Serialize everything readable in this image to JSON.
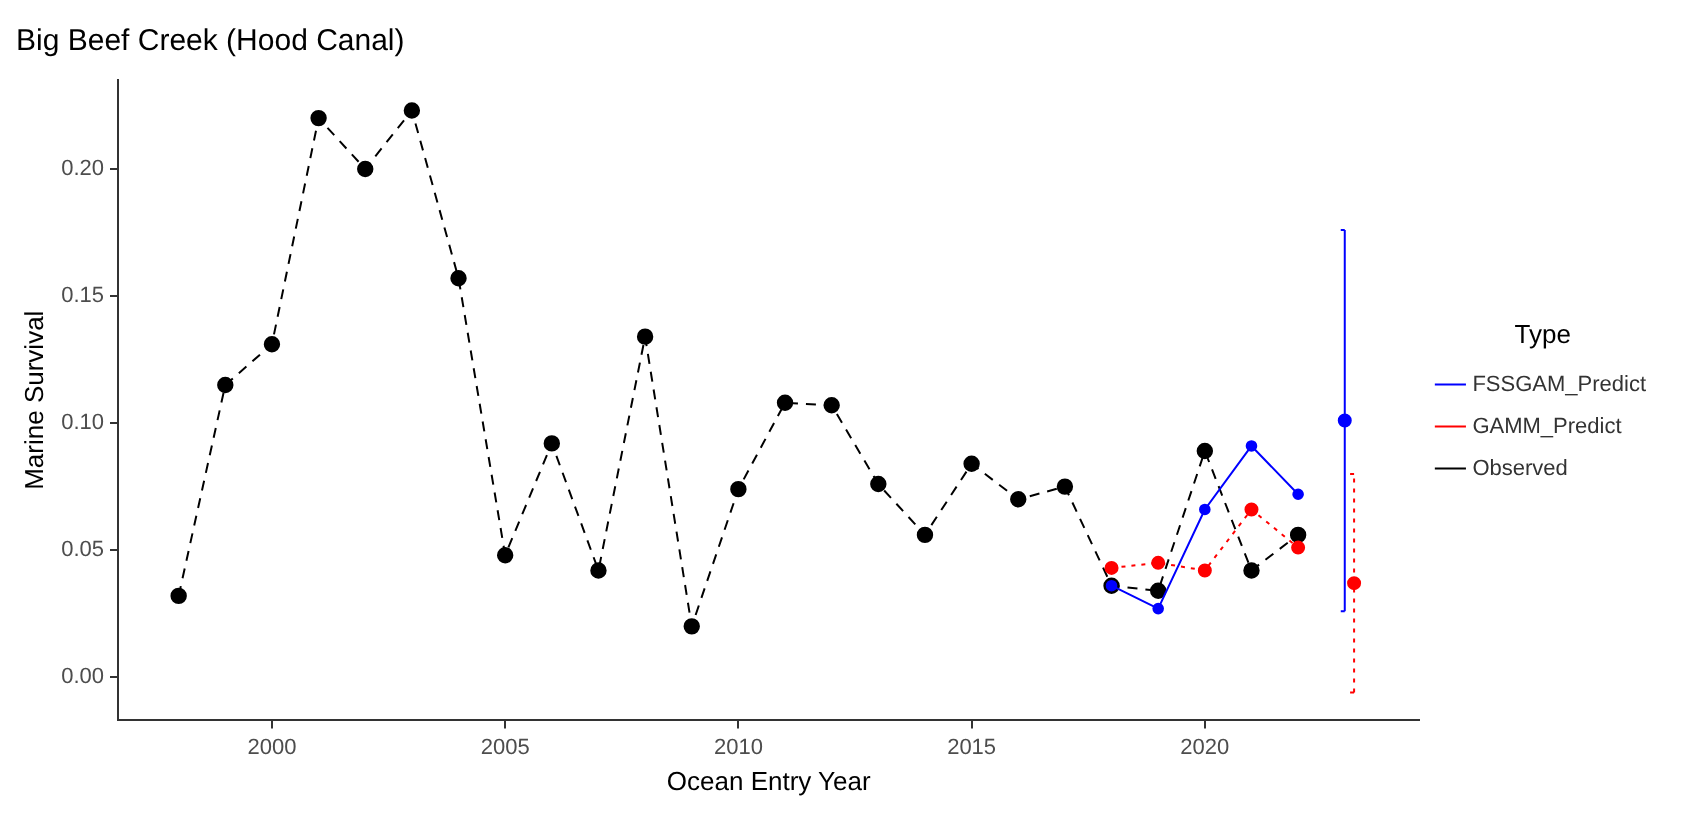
{
  "chart_data": {
    "type": "line",
    "title": "Big Beef Creek (Hood Canal)",
    "xlabel": "Ocean Entry Year",
    "ylabel": "Marine Survival",
    "legend_title": "Type",
    "xlim": [
      1996.7,
      2024.6
    ],
    "xticks": [
      2000,
      2005,
      2010,
      2015,
      2020
    ],
    "ylim": [
      -0.017,
      0.235
    ],
    "yticks": [
      {
        "value": 0,
        "label": "0.00"
      },
      {
        "value": 0.05,
        "label": "0.05"
      },
      {
        "value": 0.1,
        "label": "0.10"
      },
      {
        "value": 0.15,
        "label": "0.15"
      },
      {
        "value": 0.2,
        "label": "0.20"
      }
    ],
    "grid": false,
    "legend": "right",
    "marker": "circle",
    "series": [
      {
        "name": "FSSGAM_Predict",
        "color": "#0000ff",
        "line_style": "solid",
        "x": [
          2018,
          2019,
          2020,
          2021,
          2022
        ],
        "values": [
          0.036,
          0.027,
          0.066,
          0.091,
          0.072
        ]
      },
      {
        "name": "GAMM_Predict",
        "color": "#ff0000",
        "line_style": "dotted",
        "x": [
          2018,
          2019,
          2020,
          2021,
          2022
        ],
        "values": [
          0.043,
          0.045,
          0.042,
          0.066,
          0.051
        ]
      },
      {
        "name": "Observed",
        "color": "#000000",
        "line_style": "dashed",
        "x": [
          1998,
          1999,
          2000,
          2001,
          2002,
          2003,
          2004,
          2005,
          2006,
          2007,
          2008,
          2009,
          2010,
          2011,
          2012,
          2013,
          2014,
          2015,
          2016,
          2017,
          2018,
          2019,
          2020,
          2021,
          2022
        ],
        "values": [
          0.032,
          0.115,
          0.131,
          0.22,
          0.2,
          0.223,
          0.157,
          0.048,
          0.092,
          0.042,
          0.134,
          0.02,
          0.074,
          0.108,
          0.107,
          0.076,
          0.056,
          0.084,
          0.07,
          0.075,
          0.036,
          0.034,
          0.089,
          0.042,
          0.056
        ]
      },
      {
        "type": "scatter",
        "color": "#0000ff",
        "line_style": "solid",
        "x": [
          2023
        ],
        "values": [
          0.101
        ],
        "errors": [
          [
            0.026,
            0.176
          ]
        ]
      },
      {
        "type": "scatter",
        "color": "#ff0000",
        "line_style": "dotted",
        "x": [
          2023.2
        ],
        "values": [
          0.037
        ],
        "errors": [
          [
            -0.006,
            0.08
          ]
        ]
      }
    ]
  }
}
